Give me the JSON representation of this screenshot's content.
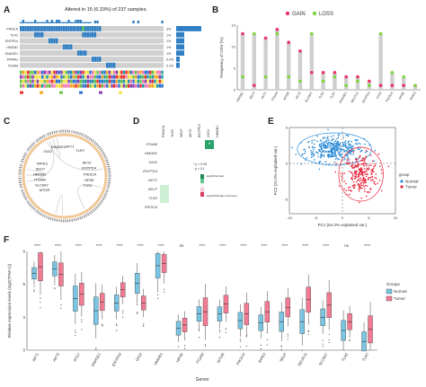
{
  "panels": {
    "A": {
      "label": "A",
      "title": "Altered in 15 (6.33%) of 237 samples.",
      "genes": [
        "PIK3CA",
        "TLR2",
        "ENTPD4",
        "HMGB1",
        "DNASE1",
        "PPARG",
        "ITGAM"
      ],
      "percents": [
        "3%",
        "1%",
        "1%",
        "1%",
        "1%",
        "0.4%",
        "0.4%"
      ],
      "colors": {
        "main": "#2f7fc4",
        "alt": "#3fbf4f",
        "grey": "#d0d0d0"
      }
    },
    "B": {
      "label": "B",
      "ylabel": "Frequency of CNV (%)",
      "legend": {
        "gain": "GAIN",
        "loss": "LOSS"
      },
      "colors": {
        "gain": "#e8356a",
        "loss": "#7fd63f",
        "stem": "#cfcfcf"
      },
      "chart_data": {
        "type": "scatter",
        "categories": [
          "HMGB1",
          "SELP",
          "AKT1",
          "ITGAM",
          "MTOR",
          "AKT2",
          "SLC6A7",
          "TLR2",
          "TLR7",
          "DNASE1",
          "SELPLG",
          "ENTPD4",
          "GIG2",
          "PIK3CA",
          "HPSE",
          "RIPK3"
        ],
        "series": [
          {
            "name": "GAIN",
            "values": [
              13,
              1,
              12,
              14,
              11,
              9,
              4,
              4,
              4,
              3,
              3,
              2,
              1,
              1,
              1,
              1
            ]
          },
          {
            "name": "LOSS",
            "values": [
              3,
              13,
              3,
              13,
              3,
              2,
              13,
              2,
              3,
              1,
              2,
              1,
              13,
              4,
              3,
              1
            ]
          }
        ],
        "ylim": [
          0,
          15
        ]
      }
    },
    "C": {
      "label": "C",
      "genes_right": [
        "AKT2",
        "ENTPD4",
        "PIK3CA",
        "HPSE",
        "TLR2"
      ],
      "genes_left": [
        "MTOR",
        "SLC6A7",
        "ITGAM",
        "HMGB1",
        "SELP",
        "RIPK3"
      ],
      "genes_top": [
        "GIG2",
        "DNASE1",
        "AKT1",
        "TLR7"
      ],
      "colors": {
        "ring": "#f0c898",
        "band": "#444444",
        "link": "#c0c0c0"
      }
    },
    "D": {
      "label": "D",
      "rows": [
        "ITGAM",
        "HMGB1",
        "GIG2",
        "ENTPD4",
        "AKT2",
        "SELP",
        "TLR2",
        "PIK3CA"
      ],
      "cols": [
        "PIK3CA",
        "TLR2",
        "SELP",
        "AKT2",
        "ENTPD4",
        "GIG2",
        "HMGB1"
      ],
      "highlight_text": "Co-occurrence",
      "legend_top": "-log10(Normal)",
      "legend_bottom": "-log10(Mutually exclusive)",
      "note_1": "* p < 0.05",
      "note_2": ". p < 0.1",
      "colors": {
        "strong": "#2aa36a",
        "mid": "#8fd9a8",
        "pale": "#ccf0d4"
      }
    },
    "E": {
      "label": "E",
      "xlabel": "PC1 (54.3% explained var.)",
      "ylabel": "PC2 (21.0% explained var.)",
      "legend_title": "group",
      "legend_items": [
        "Normal",
        "Tumor"
      ],
      "colors": {
        "normal": "#2b8bd6",
        "tumor": "#e8243a"
      },
      "chart_data": {
        "type": "scatter",
        "xlim": [
          -10,
          10
        ],
        "ylim": [
          -7,
          5
        ],
        "xticks": [
          -10,
          -5,
          0,
          5,
          10
        ],
        "yticks": [
          -5,
          0,
          5
        ],
        "series": [
          {
            "name": "Normal",
            "center": [
              -1.5,
              2
            ],
            "spread": [
              5,
              1.5
            ]
          },
          {
            "name": "Tumor",
            "center": [
              3.5,
              -1.5
            ],
            "spread": [
              3,
              2.5
            ]
          }
        ]
      }
    },
    "F": {
      "label": "F",
      "ylabel": "Relative expression levels (log2(TPM+1))",
      "xlabel": "Genes",
      "legend_title": "Groups",
      "legend_items": [
        "Normal",
        "Tumor"
      ],
      "colors": {
        "normal": "#79c5e3",
        "tumor": "#f27b93"
      },
      "chart_data": {
        "type": "bar",
        "categories": [
          "AKT1",
          "AKT2",
          "ATG7",
          "DNASE1",
          "ENTPD4",
          "GIG2",
          "HMGB1",
          "HPSE",
          "ITGAM",
          "MTOR",
          "PIK3CA",
          "RIPK3",
          "SELP",
          "SELPLG",
          "SLC6A7",
          "TLR2",
          "TLR7"
        ],
        "significance": [
          "****",
          "****",
          "****",
          "****",
          "****",
          "****",
          "****",
          "ns",
          "****",
          "****",
          "****",
          "****",
          "****",
          "****",
          "****",
          "ns",
          "****"
        ],
        "series": [
          {
            "name": "Normal",
            "values": [
              7.0,
              7.4,
              4.7,
              3.6,
              4.3,
              6.1,
              7.7,
              2.0,
              3.3,
              3.3,
              2.7,
              2.5,
              2.6,
              2.6,
              3.0,
              1.8,
              0.8
            ]
          },
          {
            "name": "Tumor",
            "values": [
              7.6,
              6.9,
              5.1,
              4.4,
              5.5,
              4.3,
              7.9,
              2.3,
              3.5,
              4.2,
              3.3,
              3.5,
              3.9,
              4.6,
              4.1,
              2.6,
              1.9
            ]
          }
        ],
        "ylim": [
          0,
          9
        ]
      }
    }
  }
}
